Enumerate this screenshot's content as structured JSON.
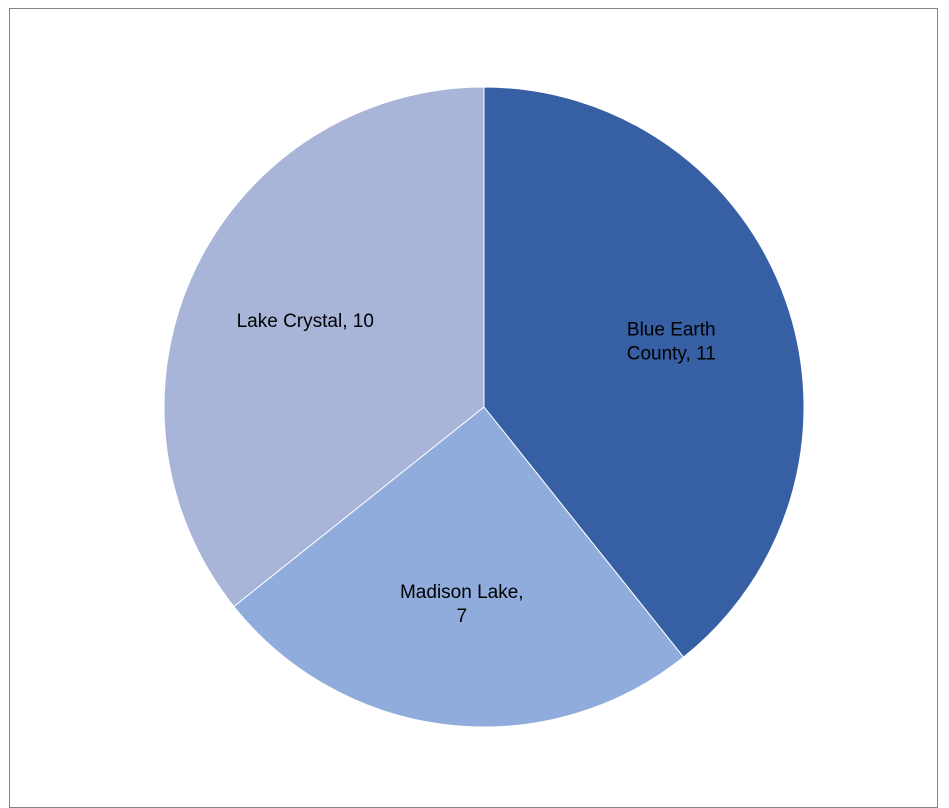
{
  "chart_data": {
    "type": "pie",
    "title": "",
    "categories": [
      "Blue Earth County",
      "Madison Lake",
      "Lake Crystal"
    ],
    "values": [
      11,
      7,
      10
    ],
    "colors": [
      "#375FA3",
      "#8FACDD",
      "#A8B5D9"
    ],
    "data_labels": [
      [
        "Blue Earth",
        "County, 11"
      ],
      [
        "Madison Lake,",
        "7"
      ],
      [
        "Lake Crystal, 10"
      ]
    ],
    "legend": "none",
    "start_angle_deg": 0,
    "direction": "clockwise"
  }
}
